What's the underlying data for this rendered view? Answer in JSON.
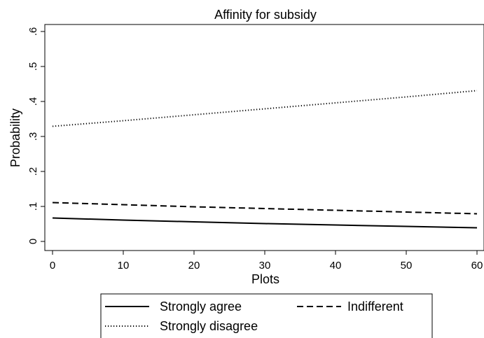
{
  "chart_data": {
    "type": "line",
    "title": "Affinity for subsidy",
    "xlabel": "Plots",
    "ylabel": "Probability",
    "xlim": [
      0,
      60
    ],
    "ylim": [
      0,
      0.6
    ],
    "xticks": [
      0,
      10,
      20,
      30,
      40,
      50,
      60
    ],
    "xtick_labels": [
      "0",
      "10",
      "20",
      "30",
      "40",
      "50",
      "60"
    ],
    "yticks": [
      0,
      0.1,
      0.2,
      0.3,
      0.4,
      0.5,
      0.6
    ],
    "ytick_labels": [
      "0",
      ".1",
      ".2",
      ".3",
      ".4",
      ".5",
      ".6"
    ],
    "grid": false,
    "legend_position": "bottom",
    "series": [
      {
        "name": "Strongly agree",
        "style": "solid",
        "x": [
          0,
          10,
          20,
          30,
          40,
          50,
          60
        ],
        "values": [
          0.067,
          0.061,
          0.056,
          0.051,
          0.047,
          0.043,
          0.039
        ]
      },
      {
        "name": "Indifferent",
        "style": "dashed",
        "x": [
          0,
          10,
          20,
          30,
          40,
          50,
          60
        ],
        "values": [
          0.111,
          0.105,
          0.099,
          0.094,
          0.089,
          0.084,
          0.079
        ]
      },
      {
        "name": "Strongly disagree",
        "style": "dotted",
        "x": [
          0,
          10,
          20,
          30,
          40,
          50,
          60
        ],
        "values": [
          0.329,
          0.345,
          0.362,
          0.379,
          0.396,
          0.413,
          0.431
        ]
      }
    ],
    "line_color": "#000000"
  }
}
